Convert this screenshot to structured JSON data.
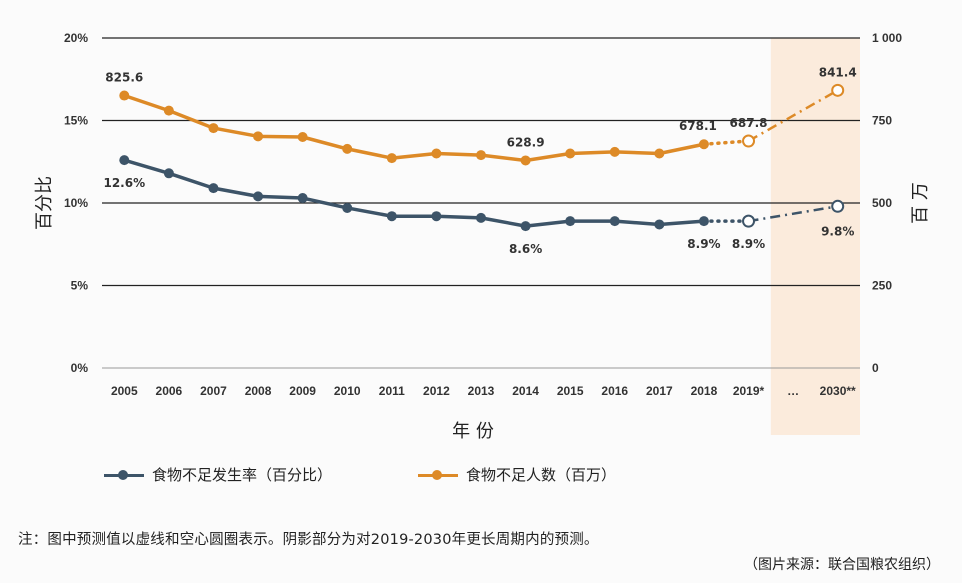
{
  "chart_data": {
    "type": "line",
    "categories": [
      "2005",
      "2006",
      "2007",
      "2008",
      "2009",
      "2010",
      "2011",
      "2012",
      "2013",
      "2014",
      "2015",
      "2016",
      "2017",
      "2018",
      "2019*",
      "…",
      "2030**"
    ],
    "xlabel": "年 份",
    "ylabel_left": "百分比",
    "ylabel_right": "百 万",
    "ylim_left": [
      0,
      20
    ],
    "ylim_right": [
      0,
      1000
    ],
    "yticks_left": [
      "0%",
      "5%",
      "10%",
      "15%",
      "20%"
    ],
    "yticks_right": [
      "0",
      "250",
      "500",
      "750",
      "1 000"
    ],
    "grid": true,
    "projection_shaded_from": "2019*",
    "series": [
      {
        "name": "食物不足发生率（百分比）",
        "axis": "left",
        "color": "#3d5468",
        "values": [
          12.6,
          11.8,
          10.9,
          10.4,
          10.3,
          9.7,
          9.2,
          9.2,
          9.1,
          8.6,
          8.9,
          8.9,
          8.7,
          8.9,
          8.9,
          null,
          9.8
        ],
        "labels": {
          "0": "12.6%",
          "9": "8.6%",
          "13": "8.9%",
          "14": "8.9%",
          "16": "9.8%"
        }
      },
      {
        "name": "食物不足人数（百万）",
        "axis": "right",
        "color": "#dd8a27",
        "values": [
          825.6,
          780,
          727,
          702,
          700,
          664,
          636,
          650,
          645,
          628.9,
          650,
          655,
          650,
          678.1,
          687.8,
          null,
          841.4
        ],
        "labels": {
          "0": "825.6",
          "9": "628.9",
          "13": "678.1",
          "14": "687.8",
          "16": "841.4"
        }
      }
    ]
  },
  "note": "注：图中预测值以虚线和空心圆圈表示。阴影部分为对2019-2030年更长周期内的预测。",
  "source": "（图片来源：联合国粮农组织）"
}
